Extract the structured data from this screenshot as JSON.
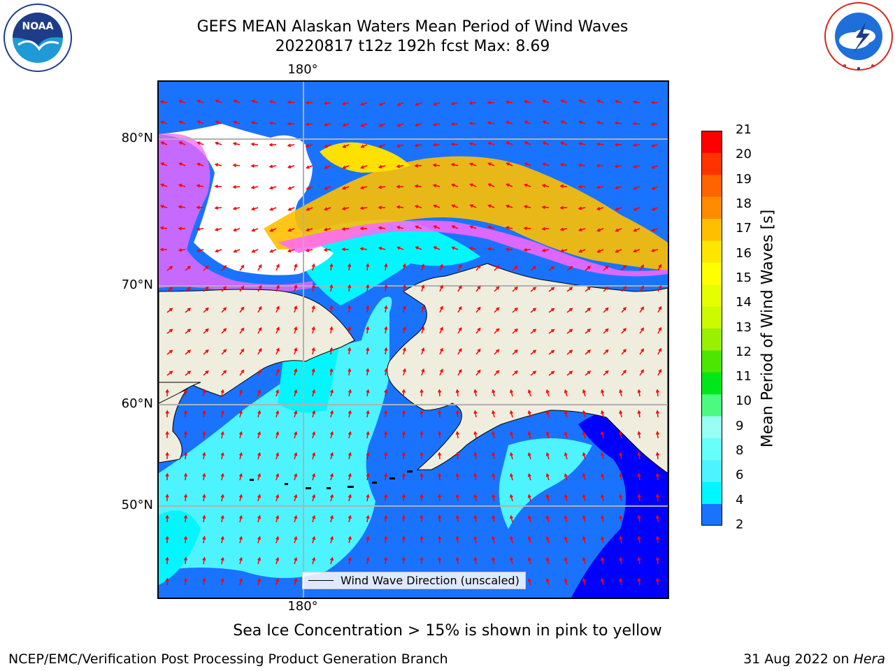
{
  "header": {
    "title_line1": "GEFS MEAN Alaskan Waters Mean Period of Wind Waves",
    "title_line2": "20220817 t12z 192h fcst   Max: 8.69"
  },
  "logos": {
    "noaa_text": "NOAA",
    "noaa_ring": "NATIONAL OCEANIC AND ATMOSPHERIC ADMINISTRATION",
    "noaa_ring_bottom": "U.S. DEPARTMENT OF COMMERCE",
    "nws_ring": "NATIONAL WEATHER SERVICE"
  },
  "map": {
    "lon_label_top": "180°",
    "lon_label_bottom": "180°",
    "lat_labels": [
      "80°N",
      "70°N",
      "60°N",
      "50°N"
    ],
    "legend_label": "Wind Wave Direction (unscaled)",
    "colors": {
      "land": "#efedde",
      "water_low": "#1a73ff",
      "water_mid": "#00ffff",
      "water_light": "#4df4ff",
      "water_deep": "#0000ff",
      "ice": "#ffffff",
      "arrows": "#ff0000"
    }
  },
  "colorbar": {
    "label": "Mean Period of Wind Waves [s]",
    "ticks": [
      "2",
      "4",
      "6",
      "7",
      "8",
      "9",
      "10",
      "11",
      "12",
      "13",
      "14",
      "15",
      "16",
      "17",
      "18",
      "19",
      "20",
      "21"
    ],
    "colors": [
      "#1a73ff",
      "#00f7ff",
      "#4df4ff",
      "#66fffa",
      "#99fff4",
      "#4dfa80",
      "#00e61a",
      "#4de600",
      "#99f000",
      "#ccfa00",
      "#e6ff00",
      "#ffff00",
      "#ffe600",
      "#ffbf00",
      "#ff8c00",
      "#ff6400",
      "#ff3300",
      "#ff0000"
    ],
    "under_color": "#0000ff"
  },
  "footnote": "Sea Ice Concentration > 15% is shown in pink to yellow",
  "footer": {
    "left": "NCEP/EMC/Verification Post Processing Product Generation Branch",
    "right_date": "31 Aug 2022 on ",
    "right_host": "Hera"
  }
}
